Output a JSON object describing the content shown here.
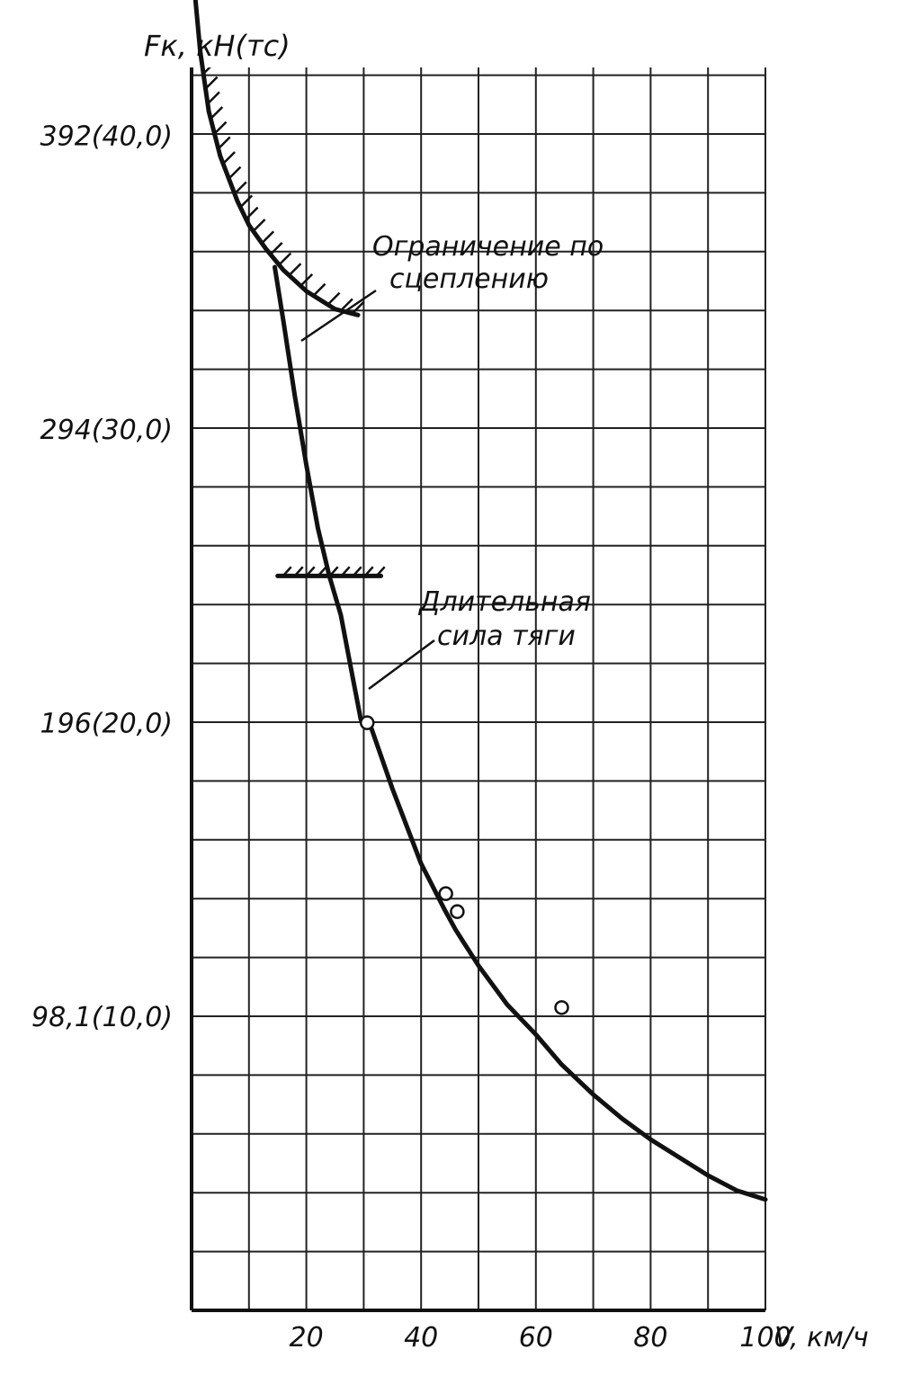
{
  "chart_data": {
    "type": "line",
    "ylabel": "Fк, кН(тс)",
    "xlabel": "V, км/ч",
    "xlim": [
      0,
      100
    ],
    "ylim": [
      0,
      470
    ],
    "grid": true,
    "x_ticks": [
      {
        "value": 20,
        "label": "20"
      },
      {
        "value": 40,
        "label": "40"
      },
      {
        "value": 60,
        "label": "60"
      },
      {
        "value": 80,
        "label": "80"
      },
      {
        "value": 100,
        "label": "100"
      }
    ],
    "y_ticks": [
      {
        "value": 98.1,
        "label": "98,1(10,0)"
      },
      {
        "value": 196,
        "label": "196(20,0)"
      },
      {
        "value": 294,
        "label": "294(30,0)"
      },
      {
        "value": 392,
        "label": "392(40,0)"
      }
    ],
    "series": [
      {
        "role": "adhesion_limit",
        "x": [
          0,
          0.3,
          1.5,
          3,
          5,
          8,
          10,
          13,
          16,
          20,
          25,
          29
        ],
        "y": [
          470,
          445,
          420,
          400,
          385,
          370,
          362,
          354,
          347,
          340,
          334,
          332
        ]
      },
      {
        "role": "traction",
        "x": [
          14.5,
          16,
          18,
          20,
          22,
          24,
          26,
          28,
          29.5,
          31,
          35,
          40,
          44,
          46,
          50,
          55,
          60,
          64.5,
          70,
          75,
          80,
          85,
          90,
          95,
          100
        ],
        "y": [
          348,
          330,
          305,
          282,
          261,
          245,
          232,
          212,
          197,
          196,
          174,
          149,
          134,
          127,
          115,
          102,
          92,
          82,
          72,
          64,
          57,
          51,
          45,
          40,
          37
        ]
      }
    ],
    "markers": {
      "x": [
        30.6,
        44.3,
        46.3,
        64.5
      ],
      "y": [
        196,
        139,
        133,
        101
      ]
    },
    "continuous_force": {
      "x": [
        15,
        33
      ],
      "y": 245
    },
    "annotations": [
      {
        "text": "Ограничение по сцеплению"
      },
      {
        "text": "Длительная сила тяги"
      }
    ]
  },
  "annotation_lines": {
    "adhesion": [
      "Ограничение по",
      "сцеплению"
    ],
    "continuous": [
      "Длительная",
      "сила тяги"
    ]
  }
}
